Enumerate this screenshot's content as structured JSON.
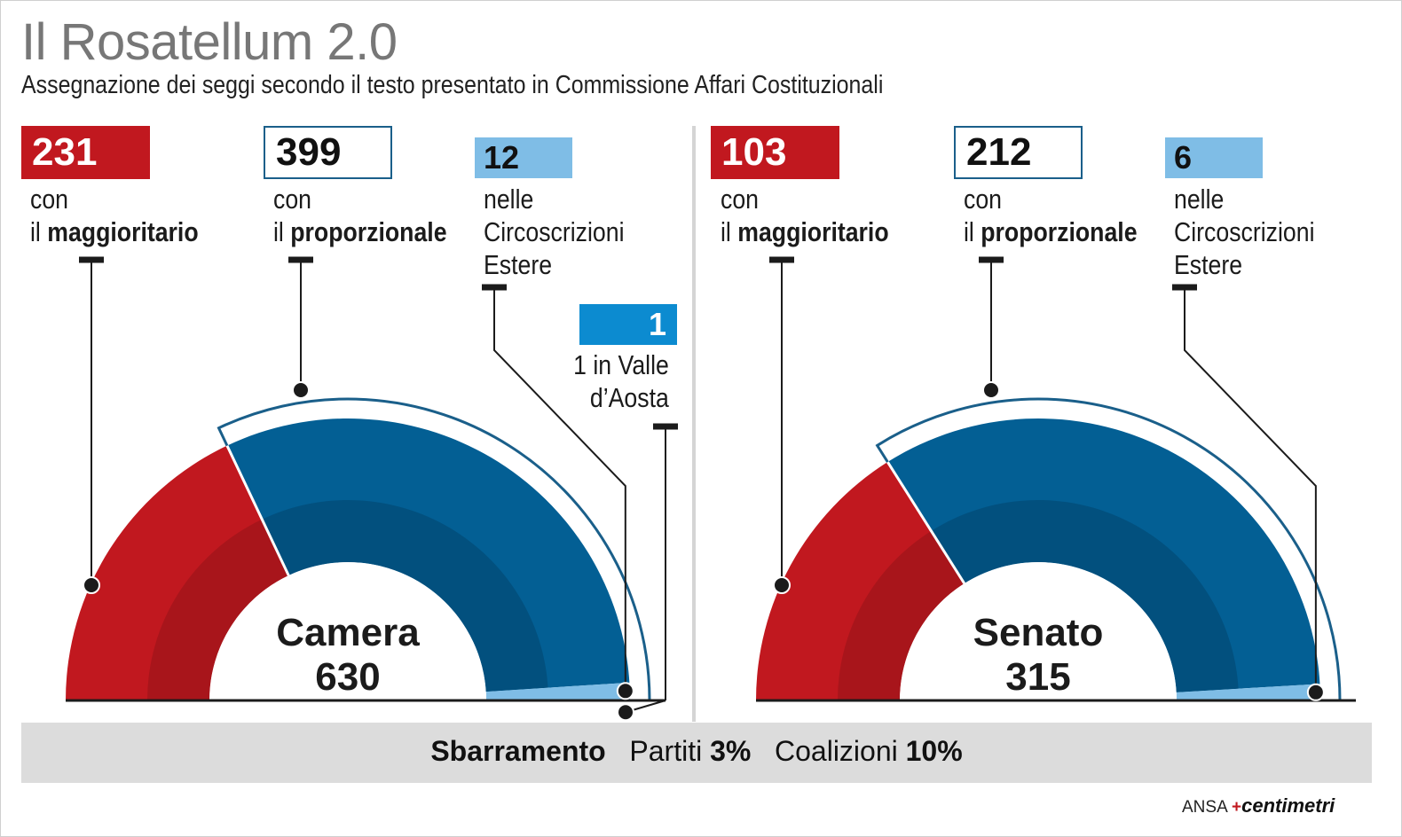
{
  "title": "Il Rosatellum 2.0",
  "subtitle": "Assegnazione dei seggi secondo il testo presentato in Commissione Affari Costituzionali",
  "colors": {
    "maggioritario": "#c1181f",
    "maggioritario_inner": "#a8151b",
    "proporzionale": "#035f94",
    "proporzionale_inner": "#02507e",
    "estero": "#7fbde6",
    "valle_aosta": "#0c8bd0",
    "outline": "#1a5f8a"
  },
  "chart_data": [
    {
      "type": "pie",
      "subtype": "semicircle",
      "center_label": "Camera",
      "total": "630",
      "segments": [
        {
          "value": "231",
          "label_prefix": "con",
          "label_article": "il",
          "label_strong": "maggioritario"
        },
        {
          "value": "399",
          "label_prefix": "con",
          "label_article": "il",
          "label_strong": "proporzionale"
        },
        {
          "value": "12",
          "label_lines": [
            "nelle",
            "Circoscrizioni",
            "Estere"
          ]
        },
        {
          "value": "1",
          "label_lines": [
            "1 in Valle",
            "d’Aosta"
          ]
        }
      ]
    },
    {
      "type": "pie",
      "subtype": "semicircle",
      "center_label": "Senato",
      "total": "315",
      "segments": [
        {
          "value": "103",
          "label_prefix": "con",
          "label_article": "il",
          "label_strong": "maggioritario"
        },
        {
          "value": "212",
          "label_prefix": "con",
          "label_article": "il",
          "label_strong": "proporzionale"
        },
        {
          "value": "6",
          "label_lines": [
            "nelle",
            "Circoscrizioni",
            "Estere"
          ]
        }
      ]
    }
  ],
  "footer": {
    "label": "Sbarramento",
    "partiti_label": "Partiti",
    "partiti_value": "3%",
    "coalizioni_label": "Coalizioni",
    "coalizioni_value": "10%"
  },
  "credit": {
    "agency": "ANSA",
    "brand": "centimetri"
  }
}
